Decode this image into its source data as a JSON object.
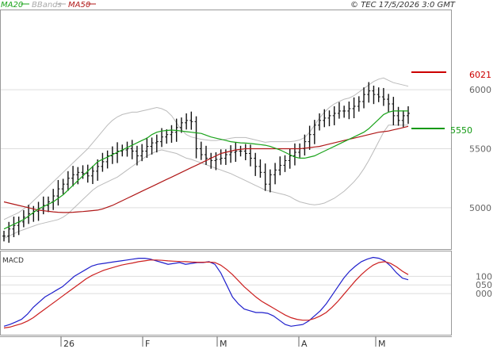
{
  "header": {
    "legend": [
      {
        "label": "MA20",
        "color": "#1aa31a"
      },
      {
        "label": "BBands",
        "color": "#aaaaaa"
      },
      {
        "label": "MA50",
        "color": "#b01818"
      }
    ],
    "copyright": "© TEC 17/5/2026 3:0 GMT"
  },
  "indicator_label": "MACD",
  "levels": {
    "resistance_label": "6021",
    "resistance_color": "#cc0000",
    "support_label": "5550",
    "support_color": "#119911"
  },
  "chart_data": [
    {
      "type": "ohlc",
      "title": "",
      "ylim": [
        4650,
        6680
      ],
      "y_ticks": [
        "6000",
        "5500",
        "5000"
      ],
      "x_ticks": [
        "26",
        "F",
        "M",
        "A",
        "M"
      ],
      "grid": true,
      "legend_position": "top-left",
      "series": [
        {
          "name": "MA20",
          "values": [
            4820,
            4840,
            4860,
            4880,
            4900,
            4930,
            4960,
            4990,
            5010,
            5030,
            5050,
            5080,
            5110,
            5150,
            5190,
            5230,
            5270,
            5310,
            5350,
            5390,
            5410,
            5430,
            5450,
            5470,
            5490,
            5510,
            5530,
            5550,
            5570,
            5590,
            5620,
            5640,
            5650,
            5655,
            5658,
            5655,
            5650,
            5645,
            5640,
            5635,
            5630,
            5615,
            5600,
            5590,
            5580,
            5570,
            5560,
            5555,
            5550,
            5548,
            5545,
            5540,
            5535,
            5530,
            5520,
            5505,
            5490,
            5470,
            5450,
            5430,
            5420,
            5420,
            5430,
            5440,
            5460,
            5480,
            5500,
            5520,
            5540,
            5560,
            5580,
            5600,
            5620,
            5640,
            5670,
            5710,
            5750,
            5790,
            5810,
            5820,
            5820,
            5820,
            5820
          ]
        },
        {
          "name": "BBands upper",
          "values": [
            4900,
            4920,
            4940,
            4960,
            4990,
            5020,
            5060,
            5100,
            5140,
            5180,
            5220,
            5260,
            5300,
            5340,
            5380,
            5420,
            5460,
            5500,
            5550,
            5600,
            5650,
            5700,
            5740,
            5770,
            5790,
            5800,
            5810,
            5810,
            5820,
            5830,
            5840,
            5850,
            5840,
            5820,
            5780,
            5720,
            5660,
            5620,
            5600,
            5590,
            5580,
            5575,
            5570,
            5570,
            5575,
            5580,
            5590,
            5595,
            5595,
            5595,
            5585,
            5575,
            5565,
            5555,
            5560,
            5560,
            5560,
            5560,
            5560,
            5565,
            5575,
            5595,
            5640,
            5700,
            5760,
            5810,
            5850,
            5880,
            5900,
            5920,
            5930,
            5950,
            5980,
            6010,
            6040,
            6070,
            6090,
            6100,
            6080,
            6060,
            6050,
            6040,
            6030
          ]
        },
        {
          "name": "BBands lower",
          "values": [
            4740,
            4760,
            4780,
            4800,
            4815,
            4830,
            4845,
            4860,
            4870,
            4880,
            4890,
            4900,
            4920,
            4950,
            4990,
            5030,
            5070,
            5110,
            5150,
            5180,
            5200,
            5220,
            5240,
            5260,
            5290,
            5320,
            5350,
            5380,
            5410,
            5440,
            5460,
            5480,
            5490,
            5480,
            5470,
            5460,
            5440,
            5420,
            5410,
            5395,
            5380,
            5365,
            5350,
            5335,
            5320,
            5305,
            5290,
            5270,
            5250,
            5230,
            5210,
            5190,
            5170,
            5150,
            5140,
            5130,
            5120,
            5110,
            5095,
            5070,
            5050,
            5040,
            5030,
            5025,
            5030,
            5040,
            5060,
            5080,
            5110,
            5140,
            5180,
            5220,
            5270,
            5330,
            5400,
            5480,
            5560,
            5640,
            5700,
            5700,
            5700,
            5700,
            5700
          ]
        },
        {
          "name": "MA50",
          "values": [
            5050,
            5040,
            5030,
            5020,
            5010,
            5000,
            4990,
            4980,
            4975,
            4970,
            4965,
            4962,
            4960,
            4960,
            4962,
            4965,
            4968,
            4972,
            4976,
            4980,
            4990,
            5005,
            5020,
            5040,
            5060,
            5080,
            5100,
            5120,
            5140,
            5160,
            5180,
            5200,
            5220,
            5240,
            5260,
            5280,
            5300,
            5320,
            5340,
            5360,
            5380,
            5400,
            5420,
            5440,
            5460,
            5470,
            5480,
            5490,
            5495,
            5500,
            5500,
            5500,
            5500,
            5500,
            5500,
            5500,
            5500,
            5500,
            5500,
            5500,
            5500,
            5505,
            5510,
            5515,
            5520,
            5530,
            5540,
            5550,
            5560,
            5570,
            5580,
            5590,
            5600,
            5610,
            5620,
            5630,
            5640,
            5645,
            5650,
            5660,
            5670,
            5680,
            5690
          ]
        },
        {
          "name": "Price",
          "values": [
            4760,
            4820,
            4850,
            4880,
            4920,
            4950,
            4970,
            4990,
            5020,
            5050,
            5100,
            5160,
            5200,
            5250,
            5280,
            5300,
            5290,
            5270,
            5310,
            5350,
            5390,
            5440,
            5460,
            5480,
            5490,
            5500,
            5480,
            5440,
            5480,
            5520,
            5550,
            5560,
            5600,
            5620,
            5640,
            5680,
            5720,
            5740,
            5730,
            5500,
            5450,
            5420,
            5400,
            5410,
            5420,
            5450,
            5470,
            5480,
            5480,
            5460,
            5420,
            5350,
            5300,
            5200,
            5280,
            5320,
            5360,
            5400,
            5440,
            5470,
            5500,
            5560,
            5620,
            5700,
            5740,
            5760,
            5780,
            5800,
            5820,
            5820,
            5840,
            5860,
            5900,
            5960,
            5990,
            5960,
            5940,
            5920,
            5880,
            5780,
            5740,
            5780,
            5800
          ]
        }
      ]
    },
    {
      "type": "line",
      "title": "MACD",
      "y_ticks": [
        "100",
        "050",
        "000"
      ],
      "series": [
        {
          "name": "MACD",
          "color": "#1f1fcc",
          "values": [
            -190,
            -180,
            -165,
            -150,
            -120,
            -80,
            -50,
            -20,
            0,
            20,
            40,
            70,
            100,
            120,
            140,
            160,
            170,
            175,
            180,
            185,
            190,
            195,
            200,
            205,
            205,
            200,
            190,
            180,
            170,
            175,
            180,
            170,
            175,
            180,
            180,
            185,
            170,
            120,
            50,
            -20,
            -60,
            -90,
            -100,
            -110,
            -110,
            -115,
            -130,
            -155,
            -180,
            -190,
            -185,
            -180,
            -160,
            -130,
            -100,
            -60,
            -10,
            40,
            90,
            130,
            160,
            185,
            200,
            210,
            205,
            190,
            160,
            120,
            90,
            80
          ]
        },
        {
          "name": "Signal",
          "color": "#cc1f1f",
          "values": [
            -200,
            -195,
            -185,
            -175,
            -160,
            -140,
            -115,
            -90,
            -65,
            -40,
            -15,
            10,
            35,
            60,
            85,
            105,
            120,
            135,
            145,
            155,
            165,
            172,
            178,
            185,
            190,
            195,
            195,
            193,
            190,
            188,
            186,
            185,
            183,
            182,
            182,
            183,
            180,
            165,
            140,
            110,
            75,
            40,
            10,
            -20,
            -45,
            -65,
            -85,
            -105,
            -125,
            -140,
            -150,
            -155,
            -155,
            -145,
            -130,
            -110,
            -80,
            -45,
            -5,
            35,
            75,
            110,
            140,
            165,
            180,
            185,
            175,
            155,
            130,
            110
          ]
        }
      ]
    }
  ]
}
